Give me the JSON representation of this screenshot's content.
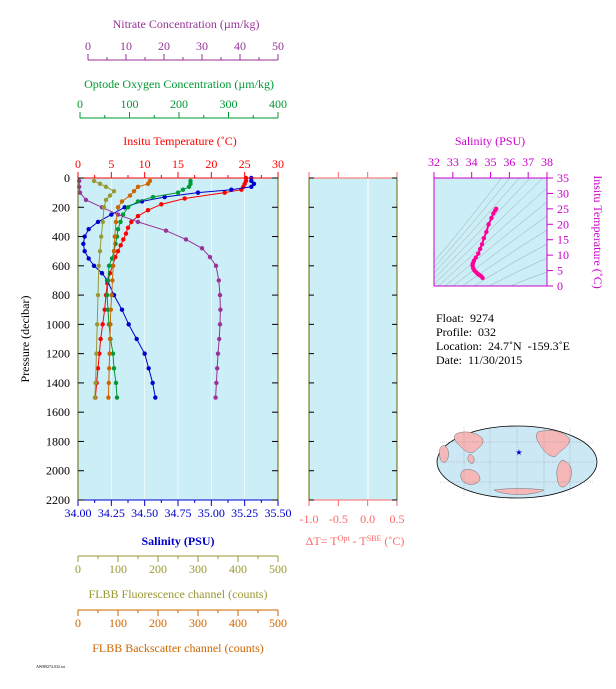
{
  "colors": {
    "nitrate": "#993399",
    "oxygen": "#009933",
    "temperature": "#ff0000",
    "salinity": "#0000cc",
    "fluorescence": "#999933",
    "backscatter": "#cc6600",
    "dt": "#ff6666",
    "ts_axis": "#cc00cc",
    "ts_line": "#ff0099",
    "panel_bg": "#cceef7",
    "frame_olive": "#666600",
    "land": "#f5b7b7",
    "ocean": "#cce8f5",
    "float_marker": "#0000cc"
  },
  "top_axes": {
    "nitrate": {
      "label": "Nitrate Concentration (µm/kg)",
      "ticks": [
        "0",
        "10",
        "20",
        "30",
        "40",
        "50"
      ]
    },
    "oxygen": {
      "label": "Optode Oxygen Concentration (µm/kg)",
      "ticks": [
        "0",
        "100",
        "200",
        "300",
        "400"
      ]
    },
    "temperature": {
      "label": "Insitu Temperature (˚C)",
      "ticks": [
        "0",
        "5",
        "10",
        "15",
        "20",
        "25",
        "30"
      ]
    }
  },
  "bottom_axes": {
    "salinity": {
      "label": "Salinity (PSU)",
      "ticks": [
        "34.00",
        "34.25",
        "34.50",
        "34.75",
        "35.00",
        "35.25",
        "35.50"
      ]
    },
    "fluorescence": {
      "label": "FLBB Fluorescence channel (counts)",
      "ticks": [
        "0",
        "100",
        "200",
        "300",
        "400",
        "500"
      ]
    },
    "backscatter": {
      "label": "FLBB Backscatter channel (counts)",
      "ticks": [
        "0",
        "100",
        "200",
        "300",
        "400",
        "500"
      ]
    }
  },
  "pressure_axis": {
    "label": "Pressure (decibar)",
    "ticks": [
      "0",
      "200",
      "400",
      "600",
      "800",
      "1000",
      "1200",
      "1400",
      "1600",
      "1800",
      "2000",
      "2200"
    ]
  },
  "dt_axis": {
    "label_main": "ΔT= T",
    "sup1": "Opt",
    "label_mid": " - T",
    "sup2": "SBE",
    "label_end": " (˚C)",
    "ticks": [
      "-1.0",
      "-0.5",
      "0.0",
      "0.5"
    ]
  },
  "ts_plot": {
    "title": "Salinity (PSU)",
    "y_label": "Insitu Temperature (˚C)",
    "x_ticks": [
      "32",
      "33",
      "34",
      "35",
      "36",
      "37",
      "38"
    ],
    "y_ticks": [
      "0",
      "5",
      "10",
      "15",
      "20",
      "25",
      "30",
      "35"
    ]
  },
  "info": {
    "float": "Float:  9274",
    "profile": "Profile:  032",
    "location": "Location:  24.7˚N  -159.3˚E",
    "date": "Date:  11/30/2015"
  },
  "footer_text": "AWB9274.032.txt",
  "chart_data": [
    {
      "type": "line",
      "name": "Profile",
      "ylim": [
        0,
        2200
      ],
      "y_reversed": true,
      "series": [
        {
          "name": "Insitu Temperature",
          "xlim": [
            0,
            30
          ],
          "points": [
            [
              25.2,
              0
            ],
            [
              25.2,
              20
            ],
            [
              25.0,
              40
            ],
            [
              24.8,
              60
            ],
            [
              24.5,
              80
            ],
            [
              22,
              100
            ],
            [
              16,
              140
            ],
            [
              12.5,
              180
            ],
            [
              10.5,
              220
            ],
            [
              9,
              260
            ],
            [
              8,
              300
            ],
            [
              7.5,
              340
            ],
            [
              7.2,
              380
            ],
            [
              6.8,
              420
            ],
            [
              6.4,
              460
            ],
            [
              6.0,
              500
            ],
            [
              5.6,
              540
            ],
            [
              5.2,
              600
            ],
            [
              4.8,
              650
            ],
            [
              4.4,
              720
            ],
            [
              4.2,
              800
            ],
            [
              4.0,
              900
            ],
            [
              3.7,
              1000
            ],
            [
              3.4,
              1100
            ],
            [
              3.2,
              1200
            ],
            [
              3.0,
              1300
            ],
            [
              2.8,
              1400
            ],
            [
              2.6,
              1500
            ]
          ]
        },
        {
          "name": "Salinity",
          "xlim": [
            34.0,
            35.5
          ],
          "points": [
            [
              35.3,
              0
            ],
            [
              35.3,
              20
            ],
            [
              35.32,
              40
            ],
            [
              35.3,
              60
            ],
            [
              35.15,
              80
            ],
            [
              34.9,
              100
            ],
            [
              34.65,
              130
            ],
            [
              34.48,
              160
            ],
            [
              34.35,
              200
            ],
            [
              34.25,
              250
            ],
            [
              34.15,
              300
            ],
            [
              34.08,
              350
            ],
            [
              34.05,
              400
            ],
            [
              34.04,
              450
            ],
            [
              34.05,
              500
            ],
            [
              34.08,
              550
            ],
            [
              34.12,
              600
            ],
            [
              34.18,
              650
            ],
            [
              34.22,
              700
            ],
            [
              34.27,
              800
            ],
            [
              34.33,
              900
            ],
            [
              34.38,
              1000
            ],
            [
              34.44,
              1100
            ],
            [
              34.5,
              1200
            ],
            [
              34.53,
              1300
            ],
            [
              34.56,
              1400
            ],
            [
              34.58,
              1500
            ]
          ]
        },
        {
          "name": "Optode Oxygen Concentration",
          "xlim": [
            0,
            400
          ],
          "points": [
            [
              225,
              20
            ],
            [
              225,
              40
            ],
            [
              222,
              60
            ],
            [
              210,
              80
            ],
            [
              200,
              100
            ],
            [
              150,
              130
            ],
            [
              120,
              160
            ],
            [
              100,
              200
            ],
            [
              90,
              250
            ],
            [
              85,
              300
            ],
            [
              80,
              350
            ],
            [
              78,
              400
            ],
            [
              75,
              450
            ],
            [
              72,
              500
            ],
            [
              68,
              550
            ],
            [
              62,
              600
            ],
            [
              60,
              700
            ],
            [
              58,
              800
            ],
            [
              60,
              900
            ],
            [
              62,
              1000
            ],
            [
              65,
              1100
            ],
            [
              70,
              1200
            ],
            [
              72,
              1300
            ],
            [
              76,
              1400
            ],
            [
              78,
              1500
            ]
          ]
        },
        {
          "name": "Nitrate Concentration",
          "xlim": [
            0,
            50
          ],
          "points": [
            [
              0.3,
              20
            ],
            [
              0.3,
              60
            ],
            [
              0.5,
              100
            ],
            [
              2,
              150
            ],
            [
              6,
              200
            ],
            [
              10,
              250
            ],
            [
              15,
              300
            ],
            [
              22,
              360
            ],
            [
              27,
              420
            ],
            [
              31,
              480
            ],
            [
              33,
              540
            ],
            [
              34.5,
              600
            ],
            [
              35.2,
              700
            ],
            [
              35.5,
              800
            ],
            [
              35.6,
              900
            ],
            [
              35.5,
              1000
            ],
            [
              35.3,
              1100
            ],
            [
              35.0,
              1200
            ],
            [
              34.8,
              1300
            ],
            [
              34.6,
              1400
            ],
            [
              34.4,
              1500
            ]
          ]
        },
        {
          "name": "FLBB Fluorescence channel",
          "xlim": [
            0,
            500
          ],
          "points": [
            [
              40,
              20
            ],
            [
              55,
              40
            ],
            [
              70,
              60
            ],
            [
              90,
              90
            ],
            [
              80,
              120
            ],
            [
              70,
              150
            ],
            [
              65,
              200
            ],
            [
              62,
              300
            ],
            [
              58,
              400
            ],
            [
              55,
              500
            ],
            [
              52,
              600
            ],
            [
              50,
              800
            ],
            [
              48,
              1000
            ],
            [
              46,
              1200
            ],
            [
              44,
              1400
            ],
            [
              42,
              1500
            ]
          ]
        },
        {
          "name": "FLBB Backscatter channel",
          "xlim": [
            0,
            500
          ],
          "points": [
            [
              180,
              20
            ],
            [
              175,
              40
            ],
            [
              150,
              60
            ],
            [
              140,
              90
            ],
            [
              130,
              120
            ],
            [
              110,
              160
            ],
            [
              100,
              200
            ],
            [
              95,
              300
            ],
            [
              92,
              400
            ],
            [
              90,
              500
            ],
            [
              88,
              600
            ],
            [
              86,
              700
            ],
            [
              84,
              800
            ],
            [
              82,
              900
            ],
            [
              81,
              1000
            ],
            [
              80,
              1100
            ],
            [
              79,
              1200
            ],
            [
              78,
              1300
            ],
            [
              77,
              1400
            ],
            [
              76,
              1500
            ]
          ]
        }
      ]
    },
    {
      "type": "line",
      "name": "ΔT",
      "xlim": [
        -1.0,
        0.5
      ],
      "ylim": [
        0,
        2200
      ],
      "y_reversed": true,
      "series": []
    },
    {
      "type": "line",
      "name": "T-S",
      "xlim": [
        32,
        38
      ],
      "ylim": [
        0,
        35
      ],
      "x_label": "Salinity (PSU)",
      "y_label": "Insitu Temperature (˚C)",
      "series": [
        {
          "name": "T-S",
          "points": [
            [
              34.58,
              2.6
            ],
            [
              34.5,
              3.2
            ],
            [
              34.4,
              3.6
            ],
            [
              34.32,
              4.0
            ],
            [
              34.25,
              4.4
            ],
            [
              34.15,
              5.0
            ],
            [
              34.08,
              5.8
            ],
            [
              34.05,
              6.6
            ],
            [
              34.06,
              7.3
            ],
            [
              34.12,
              8.2
            ],
            [
              34.22,
              9.2
            ],
            [
              34.35,
              10.5
            ],
            [
              34.45,
              12.0
            ],
            [
              34.55,
              13.5
            ],
            [
              34.65,
              15.5
            ],
            [
              34.78,
              17.5
            ],
            [
              34.9,
              20
            ],
            [
              35.05,
              22
            ],
            [
              35.15,
              23.5
            ],
            [
              35.25,
              24.5
            ],
            [
              35.3,
              25.0
            ]
          ]
        }
      ]
    }
  ]
}
